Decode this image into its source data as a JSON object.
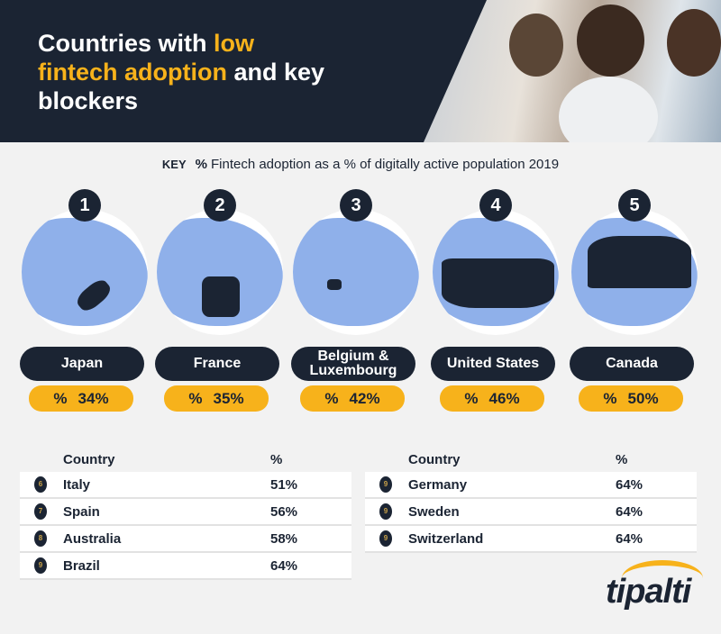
{
  "header": {
    "title_pre": "Countries with ",
    "title_highlight": "low fintech adoption",
    "title_post": " and key blockers"
  },
  "key": {
    "label": "KEY",
    "icon": "percent-icon",
    "text": "Fintech adoption as a % of digitally active population 2019"
  },
  "colors": {
    "navy": "#1b2433",
    "yellow": "#f7b21b",
    "map_blue": "#8fb0ea"
  },
  "top5": [
    {
      "rank": "1",
      "country": "Japan",
      "value": "34%"
    },
    {
      "rank": "2",
      "country": "France",
      "value": "35%"
    },
    {
      "rank": "3",
      "country": "Belgium & Luxembourg",
      "value": "42%"
    },
    {
      "rank": "4",
      "country": "United States",
      "value": "46%"
    },
    {
      "rank": "5",
      "country": "Canada",
      "value": "50%"
    }
  ],
  "table_left": {
    "col_country": "Country",
    "col_pct": "%",
    "rows": [
      {
        "rank": "6",
        "country": "Italy",
        "value": "51%"
      },
      {
        "rank": "7",
        "country": "Spain",
        "value": "56%"
      },
      {
        "rank": "8",
        "country": "Australia",
        "value": "58%"
      },
      {
        "rank": "9",
        "country": "Brazil",
        "value": "64%"
      }
    ]
  },
  "table_right": {
    "col_country": "Country",
    "col_pct": "%",
    "rows": [
      {
        "rank": "9",
        "country": "Germany",
        "value": "64%"
      },
      {
        "rank": "9",
        "country": "Sweden",
        "value": "64%"
      },
      {
        "rank": "9",
        "country": "Switzerland",
        "value": "64%"
      }
    ]
  },
  "logo": "tipalti"
}
